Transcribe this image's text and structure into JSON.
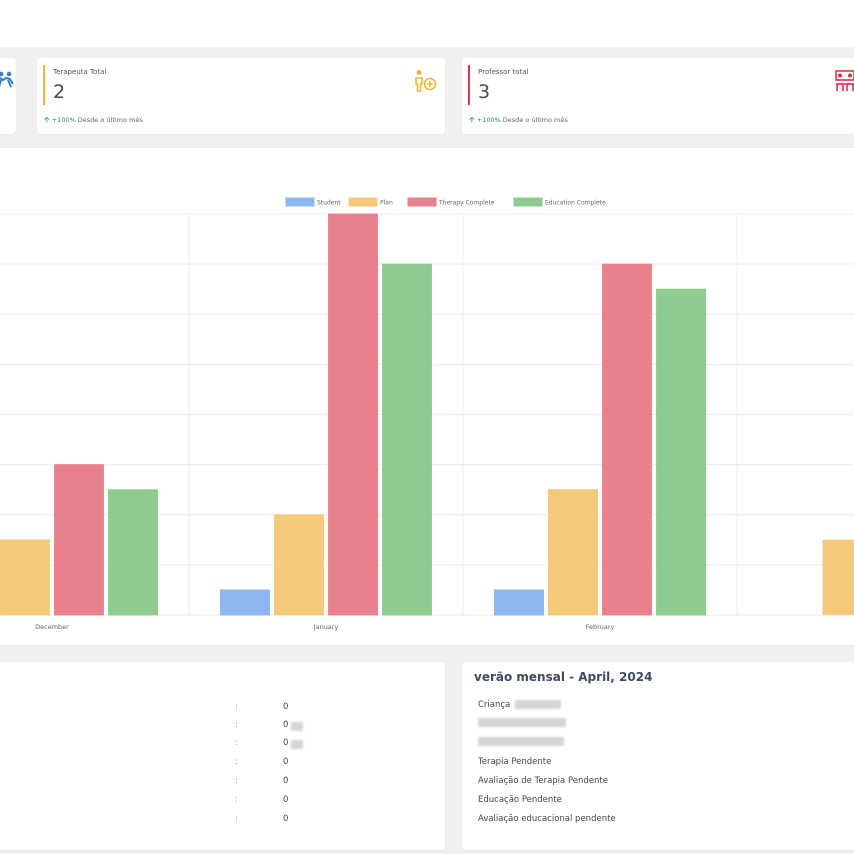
{
  "stats": {
    "therapist": {
      "label": "Terapeuta Total",
      "value": "2",
      "change_pct": "+100%",
      "change_text": "Desde o último mês",
      "accent": "#e8b83a",
      "icon": "therapist-icon"
    },
    "teacher": {
      "label": "Professor total",
      "value": "3",
      "change_pct": "+100%",
      "change_text": "Desde o último mês",
      "accent": "#e0334a",
      "icon": "teacher-icon"
    },
    "student_icon": "students-icon"
  },
  "chart_data": {
    "type": "bar",
    "categories": [
      "December",
      "January",
      "February"
    ],
    "series": [
      {
        "name": "Student",
        "color": "#8db6f2",
        "values": [
          0,
          0.5,
          0.5
        ]
      },
      {
        "name": "Plan",
        "color": "#f5c97a",
        "values": [
          1.5,
          2,
          2.5
        ]
      },
      {
        "name": "Therapy Complete",
        "color": "#e8818e",
        "values": [
          3,
          8,
          7
        ]
      },
      {
        "name": "Education Complete",
        "color": "#8ecb8e",
        "values": [
          2.5,
          7,
          6.5
        ]
      }
    ],
    "next_category_plan_value": 1.5,
    "ylim": [
      0,
      8
    ],
    "grid": true,
    "legend_position": "top"
  },
  "bottom_left": {
    "rows": [
      {
        "colon": ":",
        "value": "0"
      },
      {
        "colon": ":",
        "value": "0"
      },
      {
        "colon": ":",
        "value": "0"
      },
      {
        "colon": ":",
        "value": "0"
      },
      {
        "colon": ":",
        "value": "0"
      },
      {
        "colon": ":",
        "value": "0"
      },
      {
        "colon": ":",
        "value": "0"
      }
    ]
  },
  "summary": {
    "title": "verão mensal - April, 2024",
    "child_label": "Criança",
    "items": [
      "Terapia Pendente",
      "Avaliação de Terapia Pendente",
      "Educação Pendente",
      "Avaliação educacional pendente"
    ]
  }
}
